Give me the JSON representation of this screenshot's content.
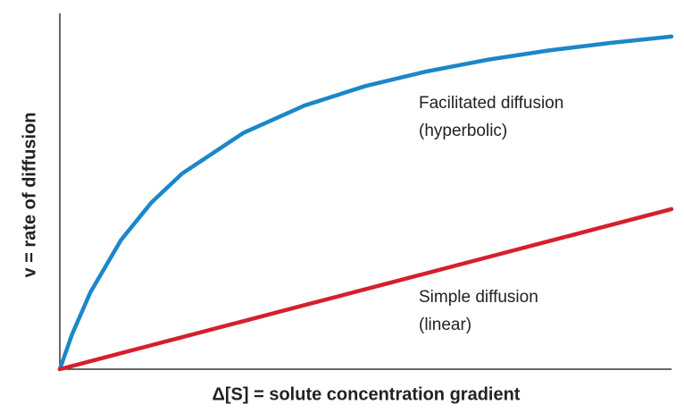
{
  "chart_data": {
    "type": "line",
    "x_label": "Δ[S] = solute concentration gradient",
    "y_label": "v = rate of diffusion",
    "x": [
      0,
      2,
      5,
      10,
      15,
      20,
      30,
      40,
      50,
      60,
      70,
      80,
      90,
      100
    ],
    "xlim": [
      0,
      100
    ],
    "ylim": [
      0,
      100
    ],
    "series": [
      {
        "color": "#1b87c9",
        "values": [
          0,
          9.8,
          21.6,
          36.3,
          46.9,
          55.0,
          66.4,
          74.1,
          79.6,
          83.7,
          87.0,
          89.6,
          91.7,
          93.5
        ]
      },
      {
        "color": "#d4202e",
        "values": [
          0,
          0.9,
          2.25,
          4.5,
          6.75,
          9,
          13.5,
          18,
          22.5,
          27,
          31.5,
          36,
          40.5,
          45
        ]
      }
    ],
    "annotations": [
      [
        "Facilitated diffusion",
        "(hyperbolic)"
      ],
      [
        "Simple diffusion",
        "(linear)"
      ]
    ]
  }
}
